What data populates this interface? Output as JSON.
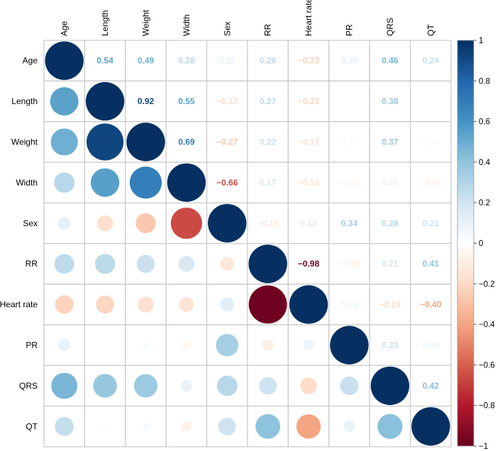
{
  "chart_data": {
    "type": "heatmap",
    "variant": "correlation-matrix",
    "upper_display": "number",
    "lower_display": "circle",
    "variables": [
      "Age",
      "Length",
      "Weight",
      "Width",
      "Sex",
      "RR",
      "Heart rate",
      "PR",
      "QRS",
      "QT"
    ],
    "matrix": [
      [
        1,
        0.54,
        0.49,
        0.28,
        0.11,
        0.26,
        -0.23,
        0.1,
        0.46,
        0.24
      ],
      [
        0.54,
        1,
        0.92,
        0.55,
        -0.17,
        0.27,
        -0.22,
        0.0,
        0.38,
        -0.02
      ],
      [
        0.49,
        0.92,
        1,
        0.69,
        -0.27,
        0.22,
        -0.17,
        0.03,
        0.37,
        0.04
      ],
      [
        0.28,
        0.55,
        0.69,
        1,
        -0.66,
        0.17,
        -0.15,
        -0.05,
        0.09,
        -0.07
      ],
      [
        0.11,
        -0.17,
        -0.27,
        -0.66,
        1,
        -0.13,
        0.13,
        0.34,
        0.28,
        0.21
      ],
      [
        0.26,
        0.27,
        0.22,
        0.17,
        -0.13,
        1,
        -0.98,
        -0.09,
        0.21,
        0.41
      ],
      [
        -0.23,
        -0.22,
        -0.17,
        -0.15,
        0.13,
        -0.98,
        1,
        0.08,
        -0.19,
        -0.4
      ],
      [
        0.1,
        0.0,
        0.03,
        -0.05,
        0.34,
        -0.09,
        0.08,
        1,
        0.23,
        0.09
      ],
      [
        0.46,
        0.38,
        0.37,
        0.09,
        0.28,
        0.21,
        -0.19,
        0.23,
        1,
        0.42
      ],
      [
        0.24,
        -0.02,
        0.04,
        -0.07,
        0.21,
        0.41,
        -0.4,
        0.09,
        0.42,
        1
      ]
    ],
    "hidden_labels": [
      [
        1,
        9
      ],
      [
        1,
        7
      ]
    ],
    "colorbar": {
      "ticks": [
        "1",
        "0.8",
        "0.6",
        "0.4",
        "0.2",
        "0",
        "−0.2",
        "−0.4",
        "−0.6",
        "−0.8",
        "−1"
      ],
      "range": [
        -1,
        1
      ],
      "colors": [
        "#67001f",
        "#b2182b",
        "#d6604d",
        "#f4a582",
        "#fddbc7",
        "#ffffff",
        "#d1e5f0",
        "#92c5de",
        "#4393c3",
        "#2166ac",
        "#053061"
      ]
    },
    "grid": true
  }
}
